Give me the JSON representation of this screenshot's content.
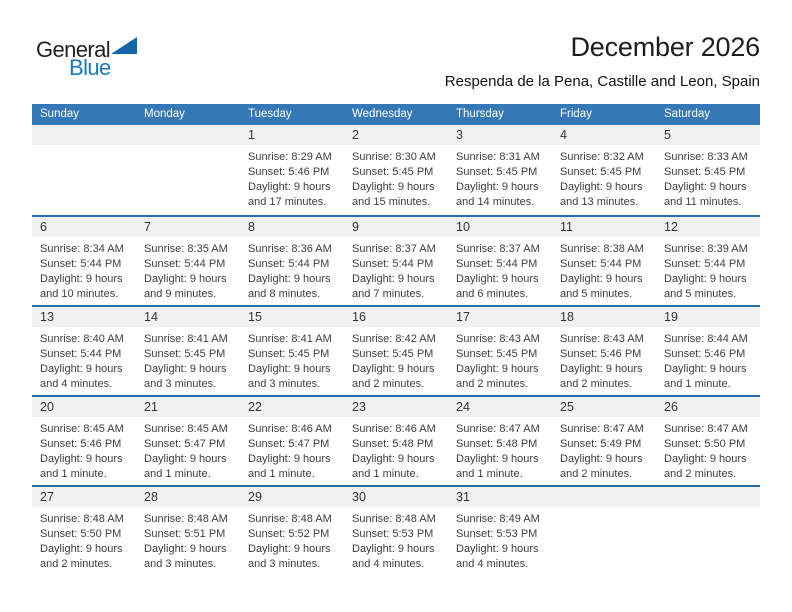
{
  "logo": {
    "general": "General",
    "blue": "Blue"
  },
  "header": {
    "title": "December 2026",
    "subtitle": "Respenda de la Pena, Castille and Leon, Spain"
  },
  "colors": {
    "header_bar": "#3578b6",
    "week_separator": "#2e6da4",
    "day_band": "#f1f1f1",
    "logo_blue": "#1878c2",
    "logo_black": "#231f20",
    "header_text": "#ffffff",
    "body_text": "#3d3d3d"
  },
  "calendar": {
    "day_headers": [
      "Sunday",
      "Monday",
      "Tuesday",
      "Wednesday",
      "Thursday",
      "Friday",
      "Saturday"
    ],
    "weeks": [
      [
        null,
        null,
        {
          "day": "1",
          "sunrise": "Sunrise: 8:29 AM",
          "sunset": "Sunset: 5:46 PM",
          "daylight": "Daylight: 9 hours and 17 minutes."
        },
        {
          "day": "2",
          "sunrise": "Sunrise: 8:30 AM",
          "sunset": "Sunset: 5:45 PM",
          "daylight": "Daylight: 9 hours and 15 minutes."
        },
        {
          "day": "3",
          "sunrise": "Sunrise: 8:31 AM",
          "sunset": "Sunset: 5:45 PM",
          "daylight": "Daylight: 9 hours and 14 minutes."
        },
        {
          "day": "4",
          "sunrise": "Sunrise: 8:32 AM",
          "sunset": "Sunset: 5:45 PM",
          "daylight": "Daylight: 9 hours and 13 minutes."
        },
        {
          "day": "5",
          "sunrise": "Sunrise: 8:33 AM",
          "sunset": "Sunset: 5:45 PM",
          "daylight": "Daylight: 9 hours and 11 minutes."
        }
      ],
      [
        {
          "day": "6",
          "sunrise": "Sunrise: 8:34 AM",
          "sunset": "Sunset: 5:44 PM",
          "daylight": "Daylight: 9 hours and 10 minutes."
        },
        {
          "day": "7",
          "sunrise": "Sunrise: 8:35 AM",
          "sunset": "Sunset: 5:44 PM",
          "daylight": "Daylight: 9 hours and 9 minutes."
        },
        {
          "day": "8",
          "sunrise": "Sunrise: 8:36 AM",
          "sunset": "Sunset: 5:44 PM",
          "daylight": "Daylight: 9 hours and 8 minutes."
        },
        {
          "day": "9",
          "sunrise": "Sunrise: 8:37 AM",
          "sunset": "Sunset: 5:44 PM",
          "daylight": "Daylight: 9 hours and 7 minutes."
        },
        {
          "day": "10",
          "sunrise": "Sunrise: 8:37 AM",
          "sunset": "Sunset: 5:44 PM",
          "daylight": "Daylight: 9 hours and 6 minutes."
        },
        {
          "day": "11",
          "sunrise": "Sunrise: 8:38 AM",
          "sunset": "Sunset: 5:44 PM",
          "daylight": "Daylight: 9 hours and 5 minutes."
        },
        {
          "day": "12",
          "sunrise": "Sunrise: 8:39 AM",
          "sunset": "Sunset: 5:44 PM",
          "daylight": "Daylight: 9 hours and 5 minutes."
        }
      ],
      [
        {
          "day": "13",
          "sunrise": "Sunrise: 8:40 AM",
          "sunset": "Sunset: 5:44 PM",
          "daylight": "Daylight: 9 hours and 4 minutes."
        },
        {
          "day": "14",
          "sunrise": "Sunrise: 8:41 AM",
          "sunset": "Sunset: 5:45 PM",
          "daylight": "Daylight: 9 hours and 3 minutes."
        },
        {
          "day": "15",
          "sunrise": "Sunrise: 8:41 AM",
          "sunset": "Sunset: 5:45 PM",
          "daylight": "Daylight: 9 hours and 3 minutes."
        },
        {
          "day": "16",
          "sunrise": "Sunrise: 8:42 AM",
          "sunset": "Sunset: 5:45 PM",
          "daylight": "Daylight: 9 hours and 2 minutes."
        },
        {
          "day": "17",
          "sunrise": "Sunrise: 8:43 AM",
          "sunset": "Sunset: 5:45 PM",
          "daylight": "Daylight: 9 hours and 2 minutes."
        },
        {
          "day": "18",
          "sunrise": "Sunrise: 8:43 AM",
          "sunset": "Sunset: 5:46 PM",
          "daylight": "Daylight: 9 hours and 2 minutes."
        },
        {
          "day": "19",
          "sunrise": "Sunrise: 8:44 AM",
          "sunset": "Sunset: 5:46 PM",
          "daylight": "Daylight: 9 hours and 1 minute."
        }
      ],
      [
        {
          "day": "20",
          "sunrise": "Sunrise: 8:45 AM",
          "sunset": "Sunset: 5:46 PM",
          "daylight": "Daylight: 9 hours and 1 minute."
        },
        {
          "day": "21",
          "sunrise": "Sunrise: 8:45 AM",
          "sunset": "Sunset: 5:47 PM",
          "daylight": "Daylight: 9 hours and 1 minute."
        },
        {
          "day": "22",
          "sunrise": "Sunrise: 8:46 AM",
          "sunset": "Sunset: 5:47 PM",
          "daylight": "Daylight: 9 hours and 1 minute."
        },
        {
          "day": "23",
          "sunrise": "Sunrise: 8:46 AM",
          "sunset": "Sunset: 5:48 PM",
          "daylight": "Daylight: 9 hours and 1 minute."
        },
        {
          "day": "24",
          "sunrise": "Sunrise: 8:47 AM",
          "sunset": "Sunset: 5:48 PM",
          "daylight": "Daylight: 9 hours and 1 minute."
        },
        {
          "day": "25",
          "sunrise": "Sunrise: 8:47 AM",
          "sunset": "Sunset: 5:49 PM",
          "daylight": "Daylight: 9 hours and 2 minutes."
        },
        {
          "day": "26",
          "sunrise": "Sunrise: 8:47 AM",
          "sunset": "Sunset: 5:50 PM",
          "daylight": "Daylight: 9 hours and 2 minutes."
        }
      ],
      [
        {
          "day": "27",
          "sunrise": "Sunrise: 8:48 AM",
          "sunset": "Sunset: 5:50 PM",
          "daylight": "Daylight: 9 hours and 2 minutes."
        },
        {
          "day": "28",
          "sunrise": "Sunrise: 8:48 AM",
          "sunset": "Sunset: 5:51 PM",
          "daylight": "Daylight: 9 hours and 3 minutes."
        },
        {
          "day": "29",
          "sunrise": "Sunrise: 8:48 AM",
          "sunset": "Sunset: 5:52 PM",
          "daylight": "Daylight: 9 hours and 3 minutes."
        },
        {
          "day": "30",
          "sunrise": "Sunrise: 8:48 AM",
          "sunset": "Sunset: 5:53 PM",
          "daylight": "Daylight: 9 hours and 4 minutes."
        },
        {
          "day": "31",
          "sunrise": "Sunrise: 8:49 AM",
          "sunset": "Sunset: 5:53 PM",
          "daylight": "Daylight: 9 hours and 4 minutes."
        },
        null,
        null
      ]
    ]
  }
}
